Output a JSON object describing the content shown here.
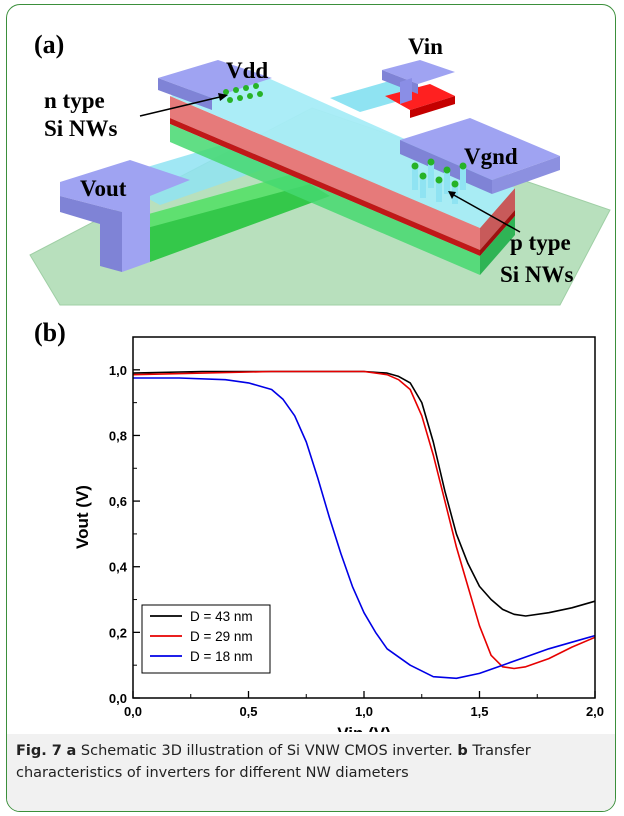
{
  "panel_a": {
    "label": "(a)",
    "labels": {
      "vdd": "Vdd",
      "vin": "Vin",
      "vgnd": "Vgnd",
      "vout": "Vout",
      "n_type_1": "n type",
      "n_type_2": "Si NWs",
      "p_type_1": "p type",
      "p_type_2": "Si NWs"
    },
    "colors": {
      "substrate": "#b8e0bd",
      "metal_pad": "#9fa3f2",
      "channel": "#8fe3f2",
      "red_layer": "#e14a4a",
      "green_layer": "#34c84a",
      "nanowire_dot": "#27b327"
    }
  },
  "panel_b": {
    "label": "(b)",
    "chart_data": {
      "type": "line",
      "xlabel": "Vin (V)",
      "ylabel": "Vout (V)",
      "xlim": [
        0,
        2
      ],
      "ylim": [
        0,
        1.1
      ],
      "xticks": [
        "0,0",
        "0,5",
        "1,0",
        "1,5",
        "2,0"
      ],
      "xtick_values": [
        0,
        0.5,
        1.0,
        1.5,
        2.0
      ],
      "yticks": [
        "0,0",
        "0,2",
        "0,4",
        "0,6",
        "0,8",
        "1,0"
      ],
      "ytick_values": [
        0,
        0.2,
        0.4,
        0.6,
        0.8,
        1.0
      ],
      "legend_position": "bottom-left",
      "series": [
        {
          "name": "D = 43 nm",
          "color": "#000000",
          "x": [
            0,
            0.3,
            0.6,
            0.9,
            1.0,
            1.1,
            1.15,
            1.2,
            1.25,
            1.3,
            1.35,
            1.4,
            1.45,
            1.5,
            1.55,
            1.6,
            1.65,
            1.7,
            1.8,
            1.9,
            2.0
          ],
          "y": [
            0.99,
            0.995,
            0.995,
            0.995,
            0.995,
            0.99,
            0.98,
            0.96,
            0.9,
            0.78,
            0.63,
            0.5,
            0.41,
            0.34,
            0.3,
            0.27,
            0.255,
            0.25,
            0.26,
            0.275,
            0.295
          ]
        },
        {
          "name": "D = 29 nm",
          "color": "#e60000",
          "x": [
            0,
            0.3,
            0.6,
            0.9,
            1.0,
            1.1,
            1.15,
            1.2,
            1.25,
            1.3,
            1.35,
            1.4,
            1.45,
            1.5,
            1.55,
            1.6,
            1.65,
            1.7,
            1.8,
            1.9,
            2.0
          ],
          "y": [
            0.985,
            0.99,
            0.995,
            0.995,
            0.995,
            0.985,
            0.97,
            0.94,
            0.86,
            0.74,
            0.6,
            0.46,
            0.34,
            0.22,
            0.13,
            0.095,
            0.09,
            0.095,
            0.12,
            0.155,
            0.185
          ]
        },
        {
          "name": "D = 18 nm",
          "color": "#0000e6",
          "x": [
            0,
            0.2,
            0.4,
            0.5,
            0.6,
            0.65,
            0.7,
            0.75,
            0.8,
            0.85,
            0.9,
            0.95,
            1.0,
            1.05,
            1.1,
            1.2,
            1.3,
            1.4,
            1.5,
            1.6,
            1.7,
            1.8,
            1.9,
            2.0
          ],
          "y": [
            0.975,
            0.975,
            0.97,
            0.96,
            0.94,
            0.91,
            0.86,
            0.78,
            0.67,
            0.55,
            0.44,
            0.34,
            0.26,
            0.2,
            0.15,
            0.1,
            0.065,
            0.06,
            0.075,
            0.1,
            0.125,
            0.15,
            0.17,
            0.19
          ]
        }
      ]
    }
  },
  "caption": {
    "fig_label": "Fig. 7",
    "a_label": "a",
    "a_text": " Schematic 3D illustration of Si VNW CMOS inverter. ",
    "b_label": "b",
    "b_text": " Transfer characteristics of inverters for different NW diameters"
  }
}
